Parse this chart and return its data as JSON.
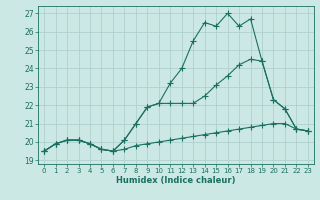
{
  "line1_x": [
    0,
    1,
    2,
    3,
    4,
    5,
    6,
    7,
    8,
    9,
    10,
    11,
    12,
    13,
    14,
    15,
    16,
    17,
    18,
    19,
    20,
    21,
    22,
    23
  ],
  "line1_y": [
    19.5,
    19.9,
    20.1,
    20.1,
    19.9,
    19.6,
    19.5,
    20.1,
    21.0,
    21.9,
    22.1,
    23.2,
    24.0,
    25.5,
    26.5,
    26.3,
    27.0,
    26.3,
    26.7,
    24.4,
    22.3,
    21.8,
    20.7,
    20.6
  ],
  "line2_x": [
    0,
    1,
    2,
    3,
    4,
    5,
    6,
    7,
    8,
    9,
    10,
    11,
    12,
    13,
    14,
    15,
    16,
    17,
    18,
    19,
    20,
    21,
    22,
    23
  ],
  "line2_y": [
    19.5,
    19.9,
    20.1,
    20.1,
    19.9,
    19.6,
    19.5,
    20.1,
    21.0,
    21.9,
    22.1,
    22.1,
    22.1,
    22.1,
    22.5,
    23.1,
    23.6,
    24.2,
    24.5,
    24.4,
    22.3,
    21.8,
    20.7,
    20.6
  ],
  "line3_x": [
    0,
    1,
    2,
    3,
    4,
    5,
    6,
    7,
    8,
    9,
    10,
    11,
    12,
    13,
    14,
    15,
    16,
    17,
    18,
    19,
    20,
    21,
    22,
    23
  ],
  "line3_y": [
    19.5,
    19.9,
    20.1,
    20.1,
    19.9,
    19.6,
    19.5,
    19.6,
    19.8,
    19.9,
    20.0,
    20.1,
    20.2,
    20.3,
    20.4,
    20.5,
    20.6,
    20.7,
    20.8,
    20.9,
    21.0,
    21.0,
    20.7,
    20.6
  ],
  "color": "#1a7060",
  "bg_color": "#cce8e4",
  "grid_color": "#aaccca",
  "xlabel": "Humidex (Indice chaleur)",
  "xlim": [
    -0.5,
    23.5
  ],
  "ylim": [
    18.8,
    27.4
  ],
  "yticks": [
    19,
    20,
    21,
    22,
    23,
    24,
    25,
    26,
    27
  ],
  "xticks": [
    0,
    1,
    2,
    3,
    4,
    5,
    6,
    7,
    8,
    9,
    10,
    11,
    12,
    13,
    14,
    15,
    16,
    17,
    18,
    19,
    20,
    21,
    22,
    23
  ]
}
